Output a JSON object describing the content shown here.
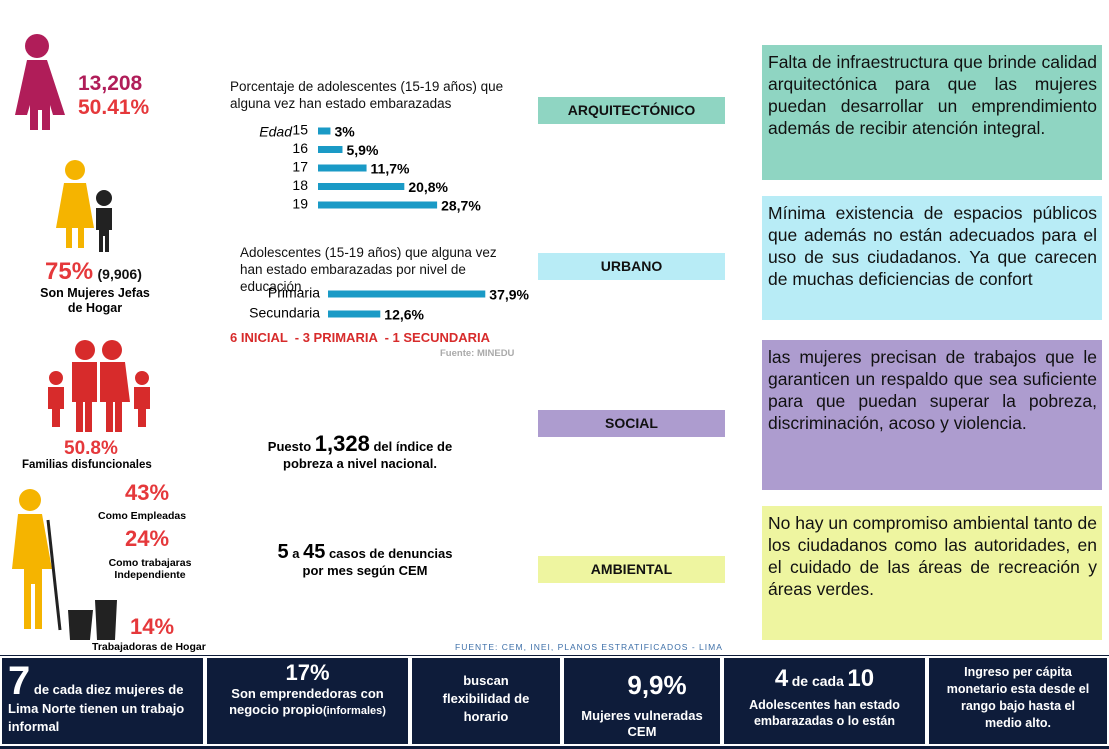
{
  "left": {
    "women_count": "13,208",
    "women_pct": "50.41%",
    "head_pct": "75%",
    "head_count": "(9,906)",
    "head_label": "Son Mujeres Jefas de Hogar",
    "family_pct": "50.8%",
    "family_label": "Familias  disfuncionales",
    "jobs": [
      {
        "pct": "43%",
        "label": "Como Empleadas"
      },
      {
        "pct": "24%",
        "label": "Como trabajaras Independiente"
      },
      {
        "pct": "14%",
        "label": "Trabajadoras de Hogar"
      }
    ]
  },
  "age_chart": {
    "type": "bar",
    "title": "Porcentaje de adolescentes (15-19 años) que alguna vez han estado embarazadas",
    "axis_label": "Edad",
    "categories": [
      "15",
      "16",
      "17",
      "18",
      "19"
    ],
    "values": [
      3,
      5.9,
      11.7,
      20.8,
      28.7
    ],
    "value_labels": [
      "3%",
      "5,9%",
      "11,7%",
      "20,8%",
      "28,7%"
    ],
    "color": "#1a9ac6"
  },
  "education_chart": {
    "type": "bar",
    "title": "Adolescentes (15-19 años) que alguna vez han estado embarazadas por nivel de educación",
    "categories": [
      "Primaria",
      "Secundaria"
    ],
    "values": [
      37.9,
      12.6
    ],
    "value_labels": [
      "37,9%",
      "12,6%"
    ],
    "color": "#1a9ac6"
  },
  "schools": "6 INICIAL  - 3 PRIMARIA  - 1 SECUNDARIA",
  "source_minedu": "Fuente: MINEDU",
  "poverty": {
    "pre": "Puesto",
    "num": "1,328",
    "post": "del índice de pobreza a nivel nacional."
  },
  "complaints": {
    "a": "5",
    "mid": "a",
    "b": "45",
    "post": "casos de denuncias  por mes según CEM"
  },
  "aspects": [
    {
      "label": "ARQUITECTÓNICO",
      "text": "Falta de infraestructura que brinde calidad arquitectónica para que las mujeres puedan desarrollar un emprendimiento además de recibir atención integral.",
      "color": "#8fd5c2"
    },
    {
      "label": "URBANO",
      "text": "Mínima existencia de espacios públicos que además no están adecuados para el uso de sus ciudadanos. Ya que carecen de muchas deficiencias de confort",
      "color": "#b8ecf6"
    },
    {
      "label": "SOCIAL",
      "text": "las mujeres precisan de trabajos que le garanticen un respaldo que sea suficiente para que puedan superar la pobreza, discriminación, acoso y violencia.",
      "color": "#ad9ccf"
    },
    {
      "label": "AMBIENTAL",
      "text": "No hay un compromiso ambiental tanto de los ciudadanos como las autoridades, en el cuidado de las áreas de recreación y áreas verdes.",
      "color": "#eef5a0"
    }
  ],
  "source": "FUENTE: CEM, INEI, PLANOS ESTRATIFICADOS - LIMA",
  "footer": {
    "informal_num": "7",
    "informal_text": "de cada diez mujeres de Lima Norte tienen un trabajo informal",
    "entre_pct": "17%",
    "entre_text": "Son emprendedoras con negocio propio",
    "entre_note": "(informales)",
    "flex_text": "buscan flexibilidad de horario",
    "vuln_pct": "9,9%",
    "vuln_text": "Mujeres vulneradas CEM",
    "preg_num": "4",
    "preg_mid": "de cada",
    "preg_den": "10",
    "preg_text": "Adolescentes han estado embarazadas o lo están",
    "income_text": "Ingreso per cápita monetario esta desde el rango bajo hasta el medio alto."
  }
}
